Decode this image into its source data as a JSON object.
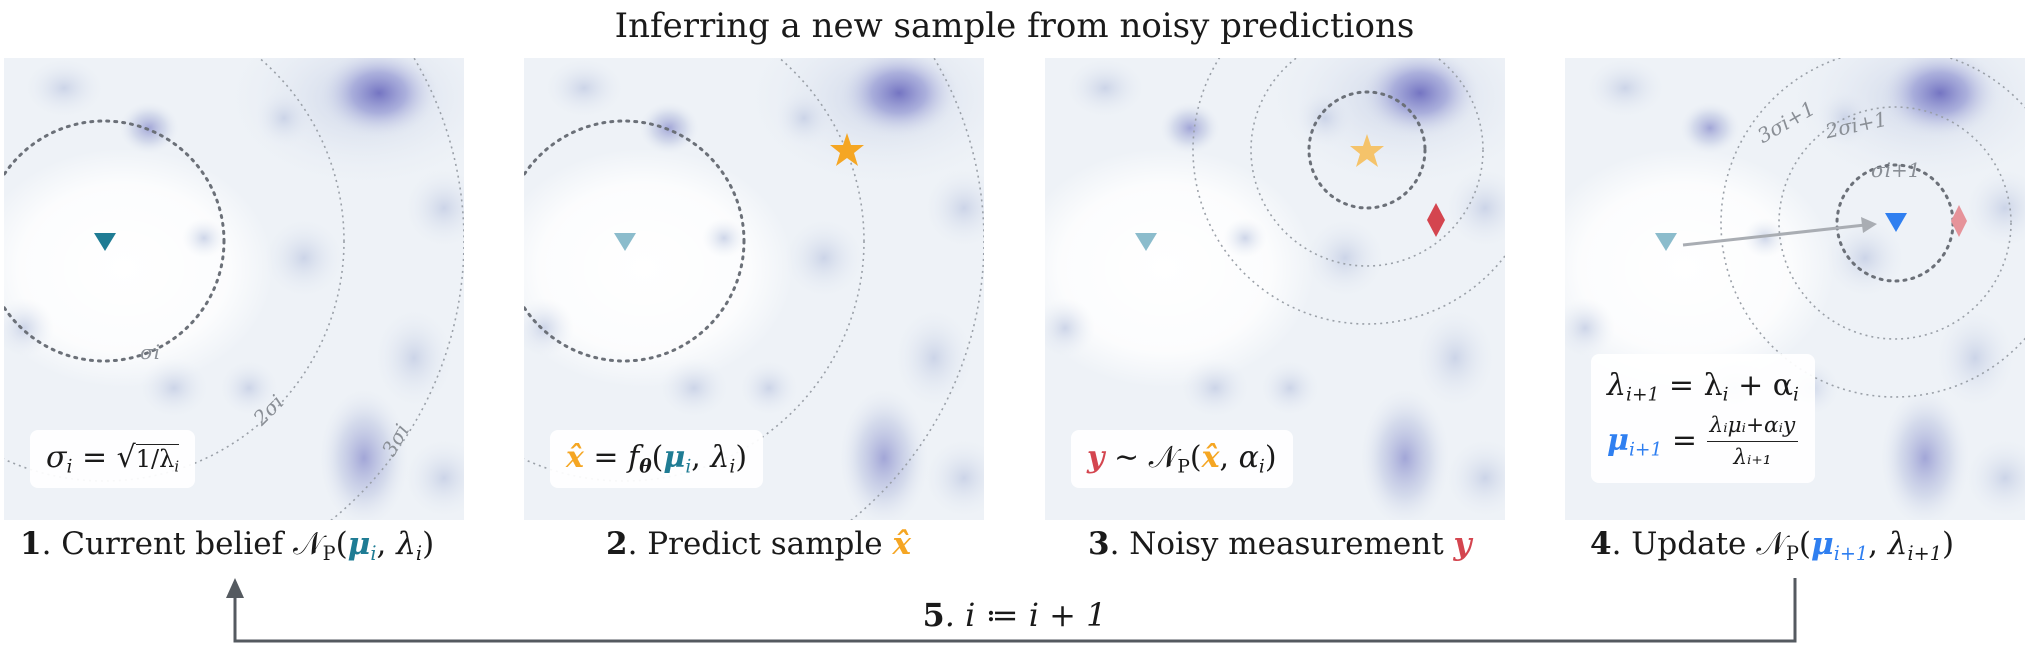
{
  "title": "Inferring a new sample from noisy predictions",
  "colors": {
    "belief": "#1f7c94",
    "prediction": "#f5a623",
    "measurement": "#d4454f",
    "update": "#2f7ff0",
    "arrow": "#555a60",
    "density_dark": "#7d7fc4",
    "density_light": "#d9e1ee"
  },
  "icons": {
    "belief_marker": "down-triangle",
    "prediction_marker": "star",
    "measurement_marker": "diamond",
    "update_arrow": "arrow-right"
  },
  "panels": [
    {
      "step_number": "1",
      "step_text": ". Current belief ",
      "step_math": "𝒩",
      "step_math_sub": "P",
      "step_args_mu": "μ",
      "step_args_mu_sub": "i",
      "step_args_lambda": "λ",
      "step_args_lambda_sub": "i",
      "formula_lhs": "σ",
      "formula_lhs_sub": "i",
      "formula_eq": " = ",
      "formula_rhs": "√",
      "formula_rhs_inner": "1/λ",
      "formula_rhs_inner_sub": "i",
      "circle_labels": [
        "σi",
        "2σi",
        "3σi"
      ]
    },
    {
      "step_number": "2",
      "step_text": ". Predict sample ",
      "step_var": "x̂",
      "formula_lhs": "x̂",
      "formula_eq": " = ",
      "formula_rhs_f": "f",
      "formula_rhs_theta": "θ",
      "formula_rhs_mu": "μ",
      "formula_rhs_mu_sub": "i",
      "formula_rhs_lambda": "λ",
      "formula_rhs_lambda_sub": "i"
    },
    {
      "step_number": "3",
      "step_text": ". Noisy measurement ",
      "step_var": "y",
      "formula_lhs": "y",
      "formula_sim": " ∼ ",
      "formula_N": "𝒩",
      "formula_N_sub": "P",
      "formula_x": "x̂",
      "formula_alpha": "α",
      "formula_alpha_sub": "i"
    },
    {
      "step_number": "4",
      "step_text": ". Update ",
      "step_math": "𝒩",
      "step_math_sub": "P",
      "step_mu": "μ",
      "step_mu_sub": "i+1",
      "step_lambda": "λ",
      "step_lambda_sub": "i+1",
      "formula1_lhs": "λ",
      "formula1_lhs_sub": "i+1",
      "formula1_rhs": " = λ",
      "formula1_rhs_sub": "i",
      "formula1_plus": " + α",
      "formula1_plus_sub": "i",
      "formula2_lhs": "μ",
      "formula2_lhs_sub": "i+1",
      "formula2_eq": " = ",
      "formula2_num": "λᵢμᵢ+αᵢy",
      "formula2_den": "λᵢ₊₁",
      "circle_labels": [
        "σi+1",
        "2σi+1",
        "3σi+1"
      ]
    }
  ],
  "loop": {
    "number": "5",
    "text": ". i ≔ i + 1"
  }
}
